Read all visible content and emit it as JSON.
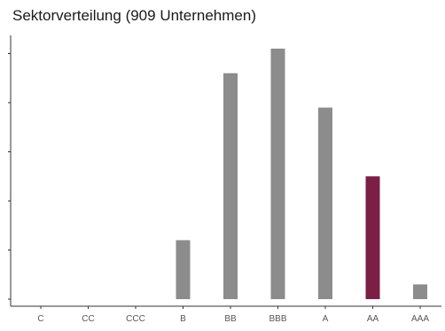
{
  "chart_data": {
    "type": "bar",
    "title": "Sektorverteilung (909 Unternehmen)",
    "xlabel": "",
    "ylabel": "",
    "categories": [
      "C",
      "CC",
      "CCC",
      "B",
      "BB",
      "BBB",
      "A",
      "AA",
      "AAA"
    ],
    "values": [
      0,
      0,
      0,
      12,
      46,
      51,
      39,
      25,
      3
    ],
    "ylim": [
      -1,
      56
    ],
    "y_ticks": [
      0,
      10,
      20,
      30,
      40,
      50
    ],
    "highlight_category": "AA",
    "colors": {
      "bar": "#8c8c8c",
      "highlight": "#7b1f45",
      "axis": "#333333"
    },
    "grid": false,
    "legend": "none"
  }
}
